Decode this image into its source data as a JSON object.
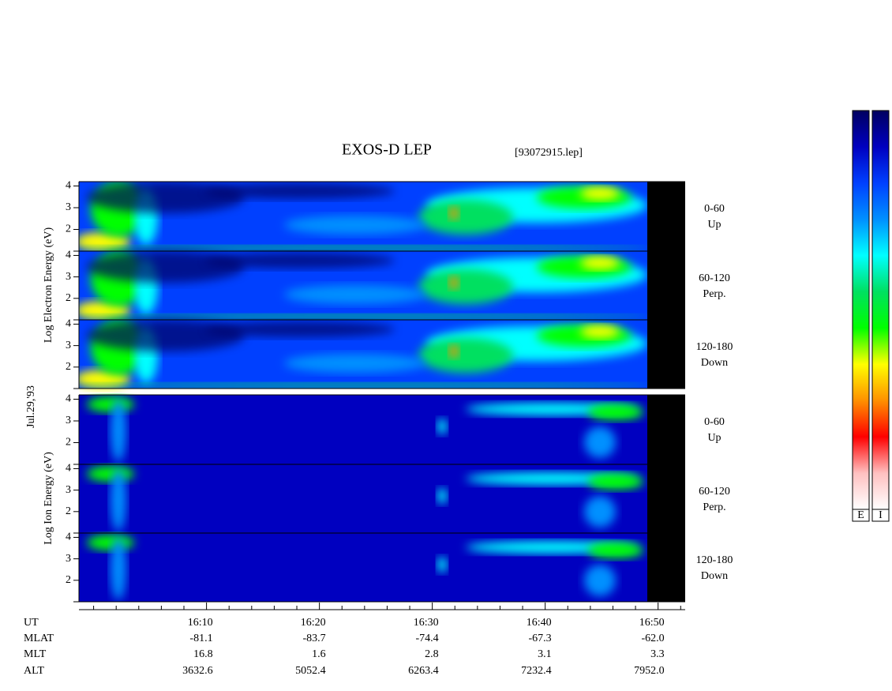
{
  "chart_data": {
    "type": "spectrogram",
    "title": "EXOS-D LEP",
    "file_label": "[93072915.lep]",
    "date_label": "Jul.29,'93",
    "groups": [
      {
        "ylabel": "Log Electron Energy (eV)",
        "panels": [
          {
            "angle": "0-60",
            "direction": "Up"
          },
          {
            "angle": "60-120",
            "direction": "Perp."
          },
          {
            "angle": "120-180",
            "direction": "Down"
          }
        ]
      },
      {
        "ylabel": "Log Ion Energy (eV)",
        "panels": [
          {
            "angle": "0-60",
            "direction": "Up"
          },
          {
            "angle": "60-120",
            "direction": "Perp."
          },
          {
            "angle": "120-180",
            "direction": "Down"
          }
        ]
      }
    ],
    "ylim": [
      1,
      4.2
    ],
    "yticks": [
      2,
      3,
      4
    ],
    "xlim": [
      958.7,
      1012.4
    ],
    "xticks": [
      {
        "value": 970,
        "label": "16:10"
      },
      {
        "value": 980,
        "label": "16:20"
      },
      {
        "value": 990,
        "label": "16:30"
      },
      {
        "value": 1000,
        "label": "16:40"
      },
      {
        "value": 1010,
        "label": "16:50"
      }
    ],
    "xminorticks": [
      960,
      962,
      964,
      966,
      968,
      972,
      974,
      976,
      978,
      982,
      984,
      986,
      988,
      992,
      994,
      996,
      998,
      1002,
      1004,
      1006,
      1008,
      1012
    ],
    "ephemeris": {
      "time_label": "UT",
      "rows": [
        {
          "name": "MLAT",
          "values": [
            "-81.1",
            "-83.7",
            "-74.4",
            "-67.3",
            "-62.0"
          ]
        },
        {
          "name": "MLT",
          "values": [
            "16.8",
            "1.6",
            "2.8",
            "3.1",
            "3.3"
          ]
        },
        {
          "name": "ALT",
          "values": [
            "3632.6",
            "5052.4",
            "6263.4",
            "7232.4",
            "7952.0"
          ]
        }
      ]
    },
    "colormap": [
      "#000060",
      "#0000c0",
      "#0040ff",
      "#0090ff",
      "#00ffff",
      "#00e060",
      "#00ff00",
      "#ffff00",
      "#ff9000",
      "#ff0000",
      "#ffc0c0",
      "#ffffff"
    ],
    "colorbar_labels": [
      "E",
      "I"
    ]
  }
}
